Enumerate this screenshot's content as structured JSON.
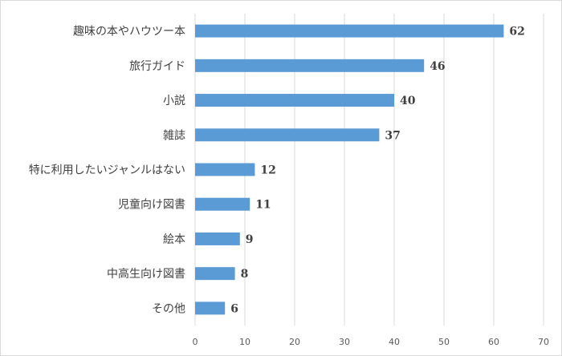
{
  "chart_data": {
    "type": "bar",
    "orientation": "horizontal",
    "categories": [
      "趣味の本やハウツー本",
      "旅行ガイド",
      "小説",
      "雑誌",
      "特に利用したいジャンルはない",
      "児童向け図書",
      "絵本",
      "中高生向け図書",
      "その他"
    ],
    "values": [
      62,
      46,
      40,
      37,
      12,
      11,
      9,
      8,
      6
    ],
    "value_labels": [
      "62",
      "46",
      "40",
      "37",
      "12",
      "11",
      "9",
      "8",
      "6"
    ],
    "xlim": [
      0,
      70
    ],
    "xticks": [
      0,
      10,
      20,
      30,
      40,
      50,
      60,
      70
    ],
    "xtick_labels": [
      "0",
      "10",
      "20",
      "30",
      "40",
      "50",
      "60",
      "70"
    ],
    "grid": "vertical",
    "legend": "none",
    "bar_color": "#5b9bd5",
    "grid_color": "#d9d9d9"
  }
}
